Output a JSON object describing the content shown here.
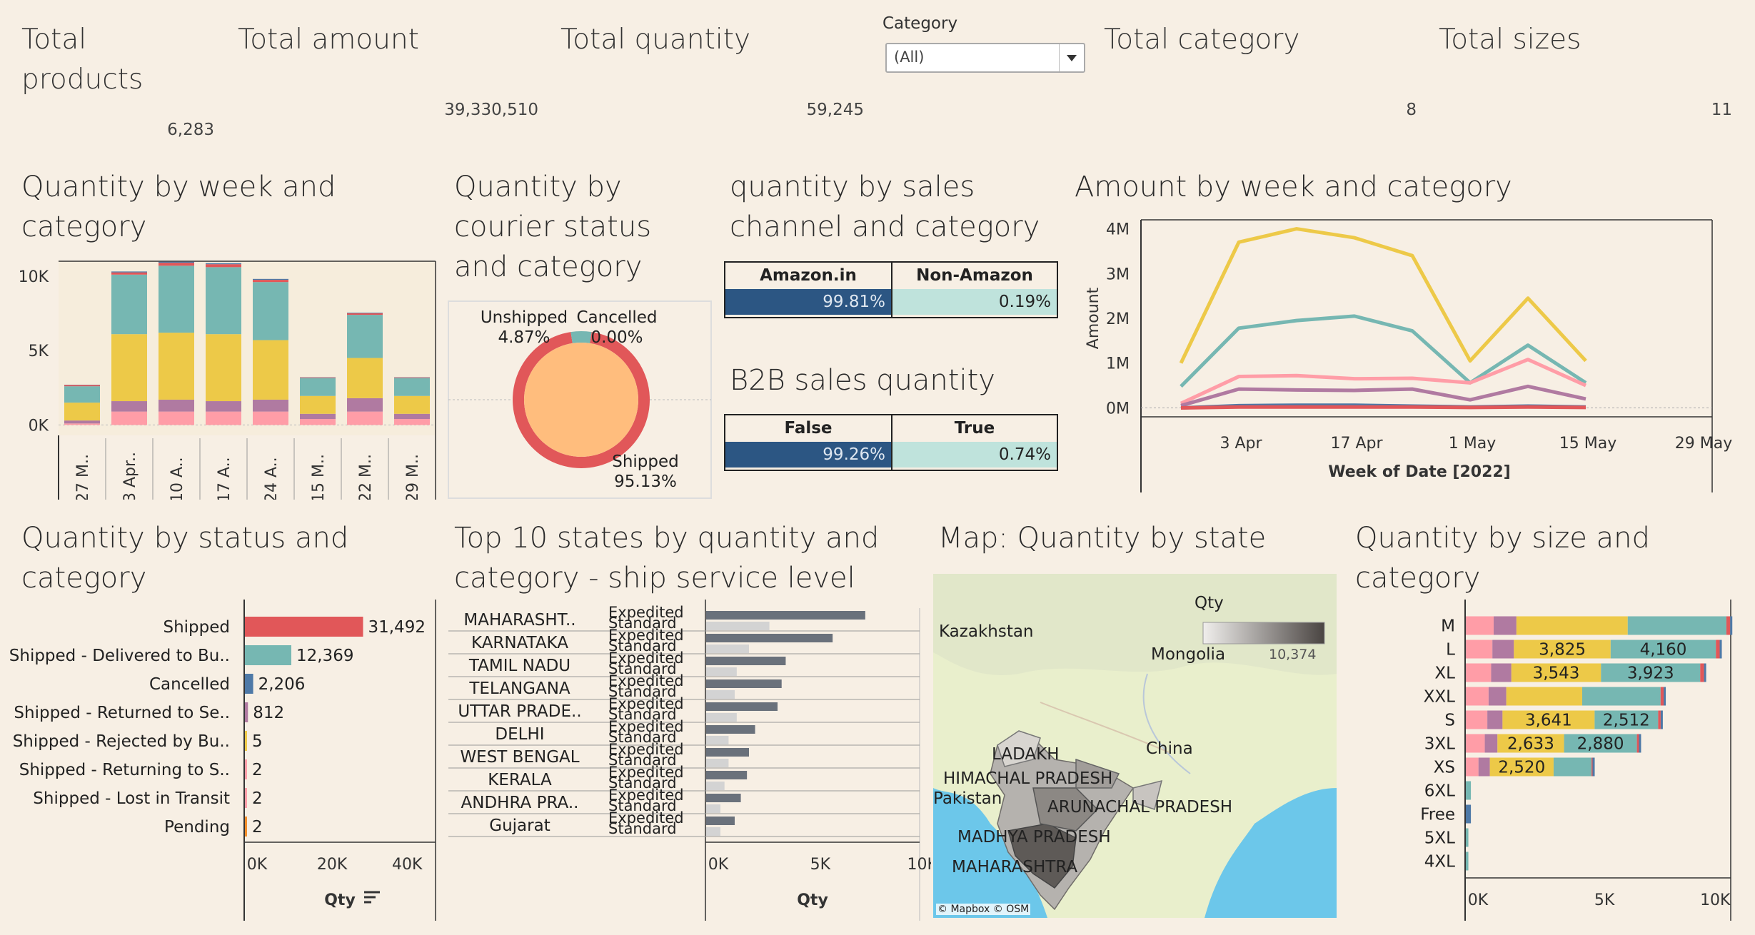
{
  "kpis": {
    "total_products": {
      "label": "Total products",
      "value": "6,283"
    },
    "total_amount": {
      "label": "Total amount",
      "value": "39,330,510"
    },
    "total_quantity": {
      "label": "Total quantity",
      "value": "59,245"
    },
    "total_category": {
      "label": "Total category",
      "value": "8"
    },
    "total_sizes": {
      "label": "Total sizes",
      "value": "11"
    }
  },
  "filter": {
    "label": "Category",
    "value": "(All)"
  },
  "titles": {
    "week_category": "Quantity by week and category",
    "courier": "Quantity by courier status and category",
    "sales_channel": "quantity by sales channel and category",
    "amount_week": "Amount by week and category",
    "b2b": "B2B sales quantity",
    "status": "Quantity by status and category",
    "top10": "Top 10 states by quantity and category - ship service level",
    "map": "Map: Quantity by state",
    "size": "Quantity by size and category"
  },
  "colors": {
    "pink": "#ff9da7",
    "purple": "#b07aa1",
    "yellow": "#edc948",
    "teal": "#76b7b2",
    "red": "#e15759",
    "blue": "#4e79a7",
    "orange": "#f28e2b",
    "green": "#59a14f",
    "darkblue": "#2c5683",
    "lightteal": "#bfe3dc",
    "donut_fill": "#ffbd7d"
  },
  "sales_channel": {
    "headers": [
      "Amazon.in",
      "Non-Amazon"
    ],
    "values": [
      "99.81%",
      "0.19%"
    ]
  },
  "b2b": {
    "headers": [
      "False",
      "True"
    ],
    "values": [
      "99.26%",
      "0.74%"
    ]
  },
  "map": {
    "legend_title": "Qty",
    "legend_value": "10,374",
    "attribution": "© Mapbox © OSM",
    "labels": [
      "Kazakhstan",
      "Mongolia",
      "China",
      "LADAKH",
      "HIMACHAL PRADESH",
      "Pakistan",
      "ARUNACHAL PRADESH",
      "MADHYA PRADESH",
      "MAHARASHTRA"
    ]
  },
  "chart_data": [
    {
      "id": "week_category",
      "type": "bar",
      "stacked": true,
      "categories": [
        "27 M..",
        "3 Apr..",
        "10 A..",
        "17 A..",
        "24 A..",
        "15 M..",
        "22 M..",
        "29 M.."
      ],
      "series": [
        {
          "color": "#ff9da7",
          "values": [
            100,
            900,
            900,
            900,
            900,
            400,
            900,
            400
          ]
        },
        {
          "color": "#b07aa1",
          "values": [
            200,
            700,
            800,
            700,
            800,
            350,
            900,
            350
          ]
        },
        {
          "color": "#edc948",
          "values": [
            1200,
            4500,
            4500,
            4500,
            4000,
            1200,
            2700,
            1200
          ]
        },
        {
          "color": "#76b7b2",
          "values": [
            1100,
            4000,
            4500,
            4500,
            3900,
            1200,
            2900,
            1200
          ]
        },
        {
          "color": "#e15759",
          "values": [
            80,
            150,
            200,
            200,
            150,
            40,
            100,
            40
          ]
        },
        {
          "color": "#4e79a7",
          "values": [
            20,
            60,
            70,
            70,
            60,
            20,
            40,
            20
          ]
        }
      ],
      "ylim": [
        -700,
        11000
      ],
      "yticks": [
        "0K",
        "5K",
        "10K"
      ]
    },
    {
      "id": "courier",
      "type": "pie",
      "slices": [
        {
          "label": "Shipped",
          "value": 95.13,
          "display": "95.13%"
        },
        {
          "label": "Unshipped",
          "value": 4.87,
          "display": "4.87%"
        },
        {
          "label": "Cancelled",
          "value": 0.0,
          "display": "0.00%"
        }
      ]
    },
    {
      "id": "amount_week",
      "type": "line",
      "x": [
        "27 Mar",
        "3 Apr",
        "10 Apr",
        "17 Apr",
        "24 Apr",
        "15 May",
        "22 May",
        "29 May"
      ],
      "xticks": [
        "3 Apr",
        "17 Apr",
        "1 May",
        "15 May",
        "29 May"
      ],
      "xlabel": "Week of Date [2022]",
      "ylabel": "Amount",
      "yticks": [
        "0M",
        "1M",
        "2M",
        "3M",
        "4M"
      ],
      "ylim": [
        -200000,
        4200000
      ],
      "series": [
        {
          "color": "#edc948",
          "values": [
            1000000,
            3700000,
            4000000,
            3800000,
            3400000,
            1050000,
            2450000,
            1050000
          ]
        },
        {
          "color": "#76b7b2",
          "values": [
            480000,
            1780000,
            1950000,
            2050000,
            1720000,
            560000,
            1400000,
            560000
          ]
        },
        {
          "color": "#ff9da7",
          "values": [
            100000,
            700000,
            720000,
            650000,
            660000,
            560000,
            1080000,
            500000
          ]
        },
        {
          "color": "#b07aa1",
          "values": [
            50000,
            420000,
            400000,
            390000,
            420000,
            180000,
            480000,
            200000
          ]
        },
        {
          "color": "#4e79a7",
          "values": [
            0,
            50000,
            60000,
            60000,
            40000,
            20000,
            40000,
            20000
          ]
        },
        {
          "color": "#e15759",
          "values": [
            0,
            20000,
            20000,
            20000,
            20000,
            10000,
            20000,
            10000
          ]
        }
      ]
    },
    {
      "id": "status",
      "type": "bar",
      "orientation": "horizontal",
      "categories": [
        "Shipped",
        "Shipped - Delivered to Bu..",
        "Cancelled",
        "Shipped - Returned to Se..",
        "Shipped - Rejected by Bu..",
        "Shipped - Returning to S..",
        "Shipped - Lost in Transit",
        "Pending"
      ],
      "values": [
        31492,
        12369,
        2206,
        812,
        5,
        2,
        2,
        2
      ],
      "labels": [
        "31,492",
        "12,369",
        "2,206",
        "812",
        "5",
        "2",
        "2",
        "2"
      ],
      "colors": [
        "#e15759",
        "#76b7b2",
        "#4e79a7",
        "#b07aa1",
        "#edc948",
        "#ff9da7",
        "#ff9da7",
        "#f28e2b"
      ],
      "xlim": [
        0,
        51000
      ],
      "xticks": [
        "0K",
        "20K",
        "40K"
      ],
      "xlabel": "Qty"
    },
    {
      "id": "top10",
      "type": "bar",
      "orientation": "horizontal",
      "categories": [
        "MAHARASHT..",
        "KARNATAKA",
        "TAMIL NADU",
        "TELANGANA",
        "UTTAR PRADE..",
        "DELHI",
        "WEST BENGAL",
        "KERALA",
        "ANDHRA PRA..",
        "Gujarat"
      ],
      "sub_categories": [
        "Expedited",
        "Standard"
      ],
      "series": [
        {
          "name": "Expedited",
          "color": "#6a717b",
          "values": [
            7800,
            6200,
            3900,
            3700,
            3500,
            2400,
            2100,
            2000,
            1700,
            1400
          ]
        },
        {
          "name": "Standard",
          "color": "#d3d3d3",
          "values": [
            3100,
            2100,
            1500,
            1400,
            1500,
            1100,
            1100,
            900,
            700,
            700
          ]
        }
      ],
      "xlim": [
        0,
        10500
      ],
      "xticks": [
        "0K",
        "5K",
        "10K"
      ],
      "xlabel": "Qty"
    },
    {
      "id": "size",
      "type": "bar",
      "orientation": "horizontal",
      "stacked": true,
      "categories": [
        "M",
        "L",
        "XL",
        "XXL",
        "S",
        "3XL",
        "XS",
        "6XL",
        "Free",
        "5XL",
        "4XL"
      ],
      "series": [
        {
          "color": "#ff9da7",
          "values": [
            1100,
            1050,
            1000,
            900,
            850,
            750,
            500,
            0,
            0,
            0,
            0
          ]
        },
        {
          "color": "#b07aa1",
          "values": [
            900,
            850,
            800,
            700,
            600,
            500,
            450,
            0,
            0,
            0,
            0
          ]
        },
        {
          "color": "#edc948",
          "values": [
            4400,
            3825,
            3543,
            3000,
            3641,
            2633,
            2520,
            0,
            0,
            0,
            0
          ]
        },
        {
          "color": "#76b7b2",
          "values": [
            3900,
            4160,
            3923,
            3100,
            2512,
            2880,
            1500,
            200,
            0,
            100,
            100
          ]
        },
        {
          "color": "#e15759",
          "values": [
            150,
            150,
            150,
            120,
            100,
            80,
            40,
            0,
            0,
            0,
            0
          ]
        },
        {
          "color": "#4e79a7",
          "values": [
            50,
            50,
            50,
            40,
            30,
            30,
            20,
            0,
            200,
            0,
            0
          ]
        }
      ],
      "segment_labels": {
        "L": [
          "",
          "",
          "3,825",
          "4,160"
        ],
        "XL": [
          "",
          "",
          "3,543",
          "3,923"
        ],
        "S": [
          "",
          "",
          "3,641",
          "2,512"
        ],
        "3XL": [
          "",
          "",
          "2,633",
          "2,880"
        ],
        "XS": [
          "",
          "",
          "2,520",
          ""
        ]
      },
      "xlim": [
        0,
        10500
      ],
      "xticks": [
        "0K",
        "5K",
        "10K"
      ]
    }
  ]
}
